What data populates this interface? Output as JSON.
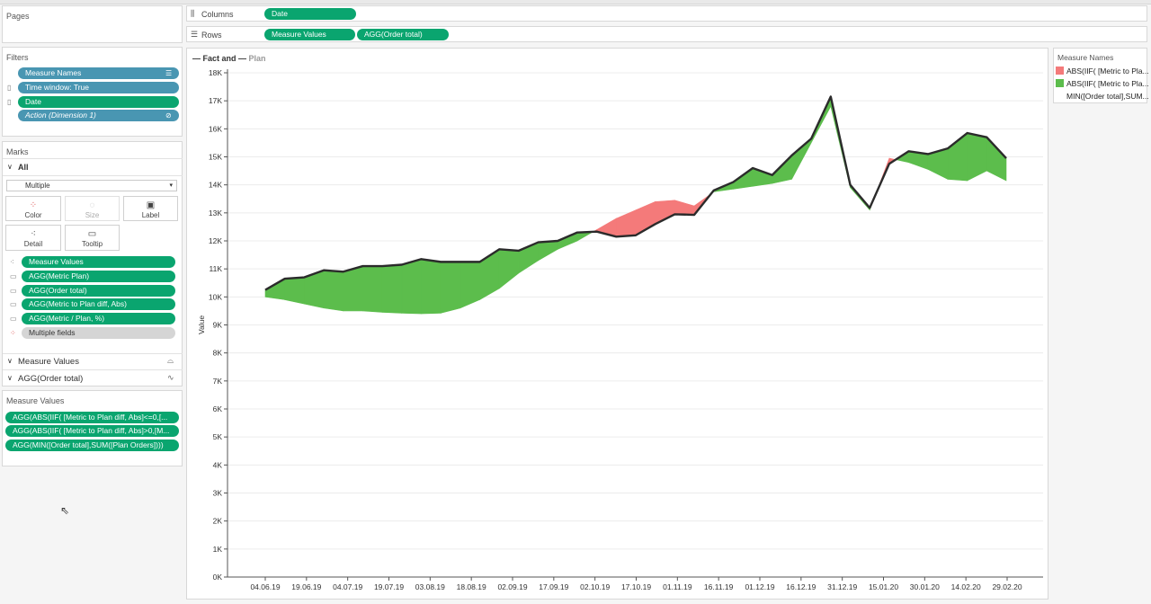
{
  "pages": {
    "title": "Pages"
  },
  "filters": {
    "title": "Filters",
    "items": [
      {
        "label": "Measure Names"
      },
      {
        "label": "Time window: True"
      },
      {
        "label": "Date"
      },
      {
        "label": "Action (Dimension 1)"
      }
    ]
  },
  "marks": {
    "title": "Marks",
    "all_label": "All",
    "mark_type": "Multiple",
    "cards": [
      {
        "label": "Color",
        "icon": "color-dots-icon"
      },
      {
        "label": "Size",
        "icon": "size-icon"
      },
      {
        "label": "Label",
        "icon": "label-icon"
      },
      {
        "label": "Detail",
        "icon": "detail-icon"
      },
      {
        "label": "Tooltip",
        "icon": "tooltip-icon"
      }
    ],
    "fields": [
      {
        "label": "Measure Values",
        "icon": "detail-icon",
        "style": "green"
      },
      {
        "label": "AGG(Metric Plan)",
        "icon": "tooltip-icon",
        "style": "green"
      },
      {
        "label": "AGG(Order total)",
        "icon": "tooltip-icon",
        "style": "green"
      },
      {
        "label": "AGG(Metric to Plan diff, Abs)",
        "icon": "tooltip-icon",
        "style": "green"
      },
      {
        "label": "AGG(Metric / Plan, %)",
        "icon": "tooltip-icon",
        "style": "green"
      },
      {
        "label": "Multiple fields",
        "icon": "color-dots-icon",
        "style": "gray"
      }
    ],
    "sections": [
      {
        "label": "Measure Values",
        "icon": "area-chart-icon"
      },
      {
        "label": "AGG(Order total)",
        "icon": "line-chart-icon"
      }
    ]
  },
  "measure_values": {
    "title": "Measure Values",
    "items": [
      {
        "label": "AGG(ABS(IIF( [Metric to Plan diff, Abs]<=0,[..."
      },
      {
        "label": "AGG(ABS(IIF( [Metric to Plan diff, Abs]>0,[M..."
      },
      {
        "label": "AGG(MIN([Order total],SUM([Plan Orders])))"
      }
    ]
  },
  "shelves": {
    "columns_label": "Columns",
    "columns_pills": [
      "Date"
    ],
    "rows_label": "Rows",
    "rows_pills": [
      "Measure Values",
      "AGG(Order total)"
    ]
  },
  "view": {
    "title_part1": "— Fact and —",
    "title_part2": "Plan"
  },
  "legend": {
    "title": "Measure Names",
    "items": [
      {
        "label": "ABS(IIF( [Metric to Pla...",
        "color": "#f47a7a"
      },
      {
        "label": "ABS(IIF( [Metric to Pla...",
        "color": "#5cbd4c"
      },
      {
        "label": "MIN([Order total],SUM...",
        "color": "#ffffff"
      }
    ]
  },
  "colors": {
    "blue_pill": "#4996b2",
    "green_pill": "#0aa56f",
    "negative": "#f47a7a",
    "positive": "#5cbd4c",
    "line": "#2b2b2b"
  },
  "chart_data": {
    "type": "area",
    "ylabel": "Value",
    "ylim": [
      0,
      18000
    ],
    "y_ticks": [
      "0K",
      "1K",
      "2K",
      "3K",
      "4K",
      "5K",
      "6K",
      "7K",
      "8K",
      "9K",
      "10K",
      "11K",
      "12K",
      "13K",
      "14K",
      "15K",
      "16K",
      "17K",
      "18K"
    ],
    "x_ticks": [
      "04.06.19",
      "19.06.19",
      "04.07.19",
      "19.07.19",
      "03.08.19",
      "18.08.19",
      "02.09.19",
      "17.09.19",
      "02.10.19",
      "17.10.19",
      "01.11.19",
      "16.11.19",
      "01.12.19",
      "16.12.19",
      "31.12.19",
      "15.01.20",
      "30.01.20",
      "14.02.20",
      "29.02.20"
    ],
    "series": [
      {
        "name": "AGG(Order total)",
        "values": [
          10250,
          10650,
          10700,
          10950,
          10900,
          11100,
          11100,
          11150,
          11350,
          11250,
          11250,
          11250,
          11700,
          11650,
          11950,
          12000,
          12300,
          12330,
          12150,
          12200,
          12600,
          12950,
          12930,
          13800,
          14100,
          14600,
          14350,
          15050,
          15650,
          17150,
          14000,
          13180,
          14750,
          15200,
          15100,
          15300,
          15850,
          15700,
          14950
        ]
      },
      {
        "name": "Plan",
        "values": [
          10000,
          9900,
          9750,
          9600,
          9500,
          9500,
          9450,
          9420,
          9400,
          9420,
          9600,
          9900,
          10300,
          10850,
          11300,
          11700,
          12000,
          12400,
          12800,
          13100,
          13400,
          13450,
          13250,
          13750,
          13850,
          13950,
          14050,
          14200,
          15500,
          16800,
          13900,
          13100,
          14950,
          14800,
          14550,
          14200,
          14150,
          14500,
          14150
        ]
      }
    ]
  }
}
